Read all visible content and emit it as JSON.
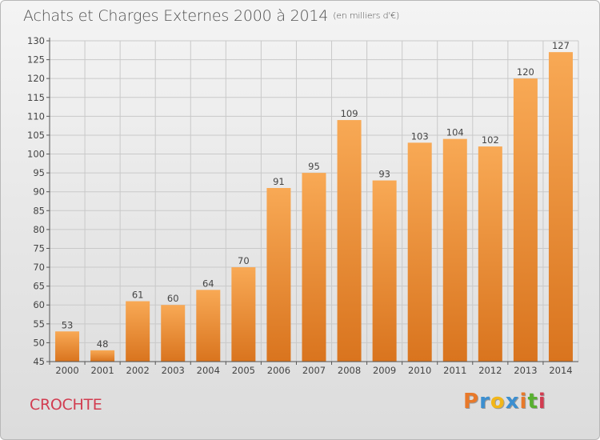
{
  "title": "Achats et Charges Externes 2000 à 2014",
  "subtitle": "(en milliers d'€)",
  "commune": "CROCHTE",
  "logo": {
    "letters": [
      "P",
      "r",
      "o",
      "x",
      "i",
      "t",
      "i"
    ],
    "colors": [
      "#e8792a",
      "#3c8fd0",
      "#f2b619",
      "#3c8fd0",
      "#e8792a",
      "#58b030",
      "#d23c50"
    ]
  },
  "colors": {
    "bar_light": "#f8a955",
    "bar_dark": "#d9741e",
    "grid": "#c9c9c9",
    "axis": "#555555",
    "text": "#444444"
  },
  "chart_data": {
    "type": "bar",
    "categories": [
      "2000",
      "2001",
      "2002",
      "2003",
      "2004",
      "2005",
      "2006",
      "2007",
      "2008",
      "2009",
      "2010",
      "2011",
      "2012",
      "2013",
      "2014"
    ],
    "values": [
      53,
      48,
      61,
      60,
      64,
      70,
      91,
      95,
      109,
      93,
      103,
      104,
      102,
      120,
      127
    ],
    "ylim": [
      45,
      130
    ],
    "yticks": [
      45,
      50,
      55,
      60,
      65,
      70,
      75,
      80,
      85,
      90,
      95,
      100,
      105,
      110,
      115,
      120,
      125,
      130
    ],
    "grid": true,
    "data_labels": true
  }
}
